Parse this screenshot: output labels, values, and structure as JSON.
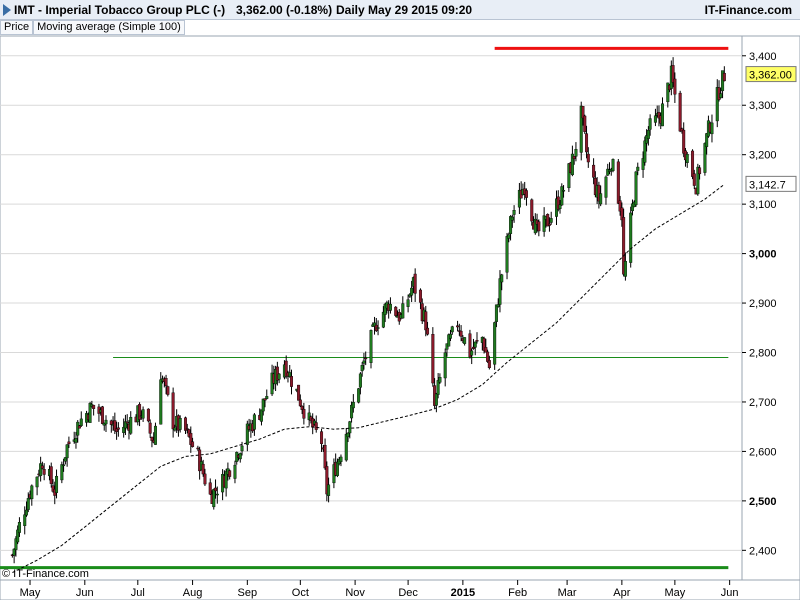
{
  "header": {
    "title": "IMT - Imperial Tobacco Group PLC (-)",
    "quote": "3,362.00 (-0.18%)",
    "period": "Daily",
    "datetime": "May 29 2015 09:20",
    "brand": "IT-Finance.com"
  },
  "legend": {
    "price_label": "Price",
    "ma_label": "Moving average (Simple 100)"
  },
  "copyright": "© IT-Finance.com",
  "colors": {
    "up": "#1f7a1f",
    "down": "#8b1a2b",
    "wick": "#000000",
    "support": "#1a8c1a",
    "resistance": "#ee1111",
    "ma": "#000000",
    "grid": "#d9d9d9"
  },
  "chart_data": {
    "type": "candlestick",
    "start_date": "2014-04-21",
    "end_date": "2015-05-29",
    "ylim": [
      2340,
      3440
    ],
    "y_ticks": [
      {
        "value": 2400,
        "label": "2,400",
        "bold": false
      },
      {
        "value": 2500,
        "label": "2,500",
        "bold": true
      },
      {
        "value": 2600,
        "label": "2,600",
        "bold": false
      },
      {
        "value": 2700,
        "label": "2,700",
        "bold": false
      },
      {
        "value": 2800,
        "label": "2,800",
        "bold": false
      },
      {
        "value": 2900,
        "label": "2,900",
        "bold": false
      },
      {
        "value": 3000,
        "label": "3,000",
        "bold": true
      },
      {
        "value": 3100,
        "label": "3,100",
        "bold": false
      },
      {
        "value": 3200,
        "label": "3,200",
        "bold": false
      },
      {
        "value": 3300,
        "label": "3,300",
        "bold": false
      },
      {
        "value": 3400,
        "label": "3,400",
        "bold": false
      }
    ],
    "x_ticks": [
      {
        "date": "2014-05-01",
        "label": "May",
        "bold": false
      },
      {
        "date": "2014-06-01",
        "label": "Jun",
        "bold": false
      },
      {
        "date": "2014-07-01",
        "label": "Jul",
        "bold": false
      },
      {
        "date": "2014-08-01",
        "label": "Aug",
        "bold": false
      },
      {
        "date": "2014-09-01",
        "label": "Sep",
        "bold": false
      },
      {
        "date": "2014-10-01",
        "label": "Oct",
        "bold": false
      },
      {
        "date": "2014-11-01",
        "label": "Nov",
        "bold": false
      },
      {
        "date": "2014-12-01",
        "label": "Dec",
        "bold": false
      },
      {
        "date": "2015-01-01",
        "label": "2015",
        "bold": true
      },
      {
        "date": "2015-02-01",
        "label": "Feb",
        "bold": false
      },
      {
        "date": "2015-03-01",
        "label": "Mar",
        "bold": false
      },
      {
        "date": "2015-04-01",
        "label": "Apr",
        "bold": false
      },
      {
        "date": "2015-05-01",
        "label": "May",
        "bold": false
      },
      {
        "date": "2015-06-01",
        "label": "Jun",
        "bold": false
      }
    ],
    "price_close": [
      [
        "2014-04-21",
        2390
      ],
      [
        "2014-04-25",
        2450
      ],
      [
        "2014-05-01",
        2520
      ],
      [
        "2014-05-08",
        2580
      ],
      [
        "2014-05-15",
        2520
      ],
      [
        "2014-05-22",
        2610
      ],
      [
        "2014-05-29",
        2660
      ],
      [
        "2014-06-05",
        2690
      ],
      [
        "2014-06-12",
        2670
      ],
      [
        "2014-06-19",
        2640
      ],
      [
        "2014-06-26",
        2660
      ],
      [
        "2014-07-03",
        2680
      ],
      [
        "2014-07-10",
        2620
      ],
      [
        "2014-07-14",
        2760
      ],
      [
        "2014-07-21",
        2660
      ],
      [
        "2014-07-28",
        2640
      ],
      [
        "2014-08-04",
        2590
      ],
      [
        "2014-08-11",
        2510
      ],
      [
        "2014-08-18",
        2540
      ],
      [
        "2014-08-25",
        2590
      ],
      [
        "2014-09-01",
        2640
      ],
      [
        "2014-09-08",
        2680
      ],
      [
        "2014-09-15",
        2740
      ],
      [
        "2014-09-22",
        2780
      ],
      [
        "2014-09-29",
        2720
      ],
      [
        "2014-10-06",
        2660
      ],
      [
        "2014-10-13",
        2620
      ],
      [
        "2014-10-16",
        2520
      ],
      [
        "2014-10-23",
        2590
      ],
      [
        "2014-10-30",
        2680
      ],
      [
        "2014-11-06",
        2780
      ],
      [
        "2014-11-13",
        2860
      ],
      [
        "2014-11-20",
        2900
      ],
      [
        "2014-11-27",
        2870
      ],
      [
        "2014-12-04",
        2940
      ],
      [
        "2014-12-11",
        2860
      ],
      [
        "2014-12-16",
        2690
      ],
      [
        "2014-12-22",
        2800
      ],
      [
        "2014-12-29",
        2860
      ],
      [
        "2015-01-05",
        2800
      ],
      [
        "2015-01-12",
        2830
      ],
      [
        "2015-01-16",
        2770
      ],
      [
        "2015-01-22",
        2940
      ],
      [
        "2015-01-29",
        3080
      ],
      [
        "2015-02-05",
        3140
      ],
      [
        "2015-02-12",
        3040
      ],
      [
        "2015-02-19",
        3070
      ],
      [
        "2015-02-26",
        3120
      ],
      [
        "2015-03-05",
        3200
      ],
      [
        "2015-03-09",
        3280
      ],
      [
        "2015-03-13",
        3180
      ],
      [
        "2015-03-19",
        3110
      ],
      [
        "2015-03-26",
        3190
      ],
      [
        "2015-04-01",
        3080
      ],
      [
        "2015-04-02",
        2950
      ],
      [
        "2015-04-09",
        3150
      ],
      [
        "2015-04-16",
        3250
      ],
      [
        "2015-04-23",
        3280
      ],
      [
        "2015-04-29",
        3360
      ],
      [
        "2015-05-06",
        3220
      ],
      [
        "2015-05-13",
        3140
      ],
      [
        "2015-05-20",
        3250
      ],
      [
        "2015-05-26",
        3330
      ],
      [
        "2015-05-29",
        3362
      ]
    ],
    "moving_average": [
      [
        "2014-04-21",
        2355
      ],
      [
        "2014-05-05",
        2380
      ],
      [
        "2014-05-19",
        2410
      ],
      [
        "2014-06-02",
        2450
      ],
      [
        "2014-06-16",
        2490
      ],
      [
        "2014-06-30",
        2530
      ],
      [
        "2014-07-14",
        2570
      ],
      [
        "2014-07-28",
        2590
      ],
      [
        "2014-08-11",
        2595
      ],
      [
        "2014-08-25",
        2610
      ],
      [
        "2014-09-08",
        2625
      ],
      [
        "2014-09-22",
        2645
      ],
      [
        "2014-10-06",
        2650
      ],
      [
        "2014-10-20",
        2645
      ],
      [
        "2014-11-03",
        2648
      ],
      [
        "2014-11-17",
        2660
      ],
      [
        "2014-12-01",
        2672
      ],
      [
        "2014-12-15",
        2685
      ],
      [
        "2014-12-29",
        2705
      ],
      [
        "2015-01-12",
        2735
      ],
      [
        "2015-01-26",
        2780
      ],
      [
        "2015-02-09",
        2820
      ],
      [
        "2015-02-23",
        2860
      ],
      [
        "2015-03-09",
        2910
      ],
      [
        "2015-03-23",
        2960
      ],
      [
        "2015-04-06",
        3010
      ],
      [
        "2015-04-20",
        3050
      ],
      [
        "2015-05-04",
        3080
      ],
      [
        "2015-05-18",
        3110
      ],
      [
        "2015-05-29",
        3140
      ]
    ],
    "horizontal_lines": [
      {
        "name": "resistance",
        "value": 3415,
        "from": "2015-01-19",
        "to": "2015-05-29",
        "color": "#ee1111",
        "width": 3
      },
      {
        "name": "range-high",
        "value": 2790,
        "from": "2014-06-17",
        "to": "2015-05-29",
        "color": "#1a8c1a",
        "width": 1
      },
      {
        "name": "support",
        "value": 2365,
        "from": "2014-04-14",
        "to": "2015-05-29",
        "color": "#1a8c1a",
        "width": 3
      }
    ],
    "last_price_label": "3,362.00",
    "ma_value_label": "3,142.7"
  }
}
